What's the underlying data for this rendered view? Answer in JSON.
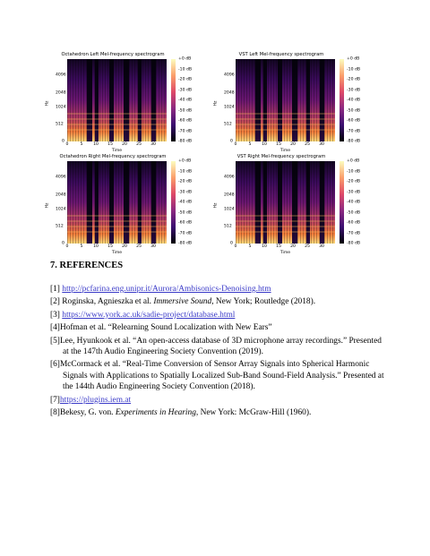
{
  "figures": [
    {
      "title": "Octahedron Left Mel-frequency spectrogram"
    },
    {
      "title": "VST Left Mel-frequency spectrogram"
    },
    {
      "title": "Octahedron Right Mel-frequency spectrogram"
    },
    {
      "title": "VST Right Mel-frequency spectrogram"
    }
  ],
  "axes": {
    "ylabel": "Hz",
    "xlabel": "Time",
    "yticks": [
      "4096",
      "2048",
      "1024",
      "512",
      "0"
    ],
    "xticks": [
      "0",
      "5",
      "10",
      "15",
      "20",
      "25",
      "30"
    ],
    "colorbar_ticks": [
      "+0 dB",
      "-10 dB",
      "-20 dB",
      "-30 dB",
      "-40 dB",
      "-50 dB",
      "-60 dB",
      "-70 dB",
      "-80 dB"
    ]
  },
  "section_heading": "7. REFERENCES",
  "references": [
    {
      "num": "[1] ",
      "link": "http://pcfarina.eng.unipr.it/Aurora/Ambisonics-Denoising.htm"
    },
    {
      "num": "[2] ",
      "pre": "Roginska, Agnieszka et al. ",
      "italic": "Immersive Sound",
      "post": ", New York; Routledge (2018)."
    },
    {
      "num": "[3] ",
      "link": "https://www.york.ac.uk/sadie-project/database.html"
    },
    {
      "num": "[4]",
      "pre": "Hofman et al. “Relearning Sound Localization with New Ears”"
    },
    {
      "num": "[5]",
      "pre": "Lee, Hyunkook et al. “An open-access database of 3D microphone array recordings.” Presented at the 147th Audio Engineering Society Convention (2019)."
    },
    {
      "num": "[6]",
      "pre": "McCormack et al. “Real-Time Conversion of Sensor Array Signals into Spherical Harmonic Signals with Applications to Spatially Localized Sub-Band Sound-Field Analysis.” Presented at the 144th Audio Engineering Society Convention (2018)."
    },
    {
      "num": "[7]",
      "link": "https://plugins.iem.at"
    },
    {
      "num": "[8]",
      "pre": "Bekesy, G. von. ",
      "italic": "Experiments in Hearing",
      "post": ", New York: McGraw-Hill (1960)."
    }
  ]
}
